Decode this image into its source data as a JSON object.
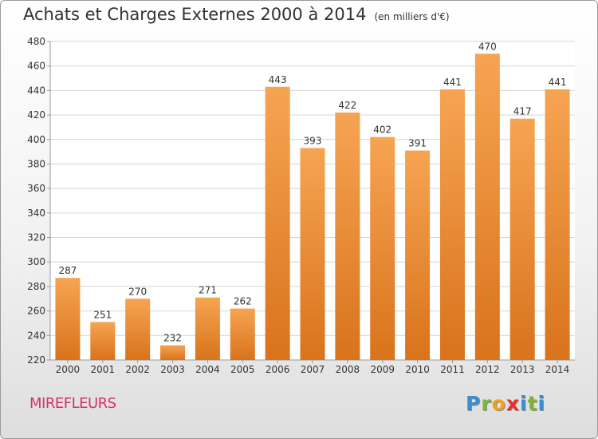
{
  "header": {
    "title": "Achats et Charges Externes 2000 à 2014",
    "unit": "(en milliers d'€)"
  },
  "town": "MIREFLEURS",
  "logo": {
    "letters": [
      "P",
      "r",
      "o",
      "x",
      "i",
      "t",
      "i"
    ],
    "colors": [
      "#3b8ed0",
      "#7bb63a",
      "#f1a01e",
      "#e5322d",
      "#3b8ed0",
      "#7bb63a",
      "#3b8ed0"
    ]
  },
  "colors": {
    "bar_top": "#f6a452",
    "bar_bottom": "#d9731c",
    "grid": "#d4d4d4",
    "axis": "#999999"
  },
  "chart_data": {
    "type": "bar",
    "title": "Achats et Charges Externes 2000 à 2014",
    "ylabel": "",
    "xlabel": "",
    "categories": [
      "2000",
      "2001",
      "2002",
      "2003",
      "2004",
      "2005",
      "2006",
      "2007",
      "2008",
      "2009",
      "2010",
      "2011",
      "2012",
      "2013",
      "2014"
    ],
    "values": [
      287,
      251,
      270,
      232,
      271,
      262,
      443,
      393,
      422,
      402,
      391,
      441,
      470,
      417,
      441
    ],
    "ylim": [
      220,
      480
    ],
    "yticks": [
      220,
      240,
      260,
      280,
      300,
      320,
      340,
      360,
      380,
      400,
      420,
      440,
      460,
      480
    ],
    "grid": true
  }
}
